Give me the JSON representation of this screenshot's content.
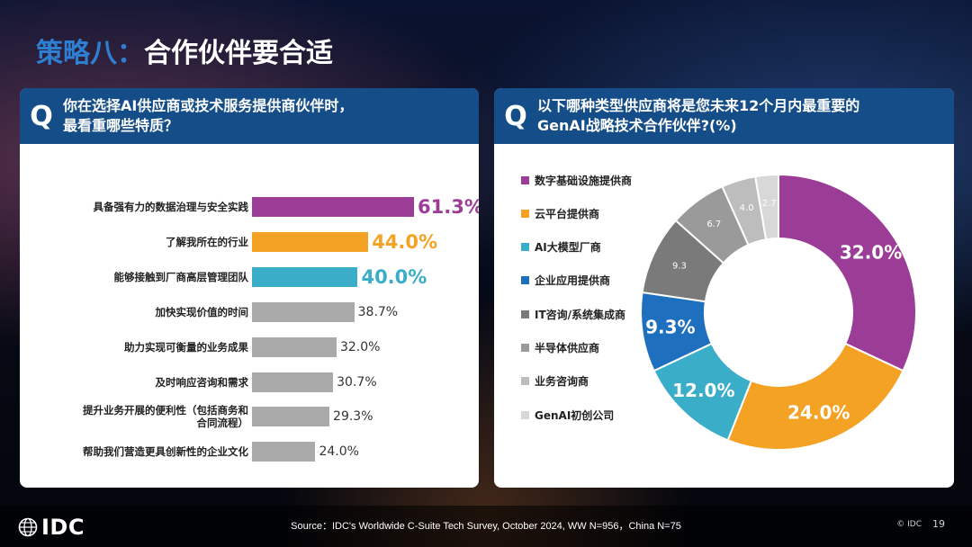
{
  "title": {
    "part1": "策略八：",
    "part2": "合作伙伴要合适"
  },
  "left_panel": {
    "q_mark": "Q",
    "question_line1": "你在选择AI供应商或技术服务提供商伙伴时，",
    "question_line2": "最看重哪些特质？"
  },
  "right_panel": {
    "q_mark": "Q",
    "question_line1": "以下哪种类型供应商将是您未来12个月内最重要的",
    "question_line2": "GenAI战略技术合作伙伴?(%)"
  },
  "chart_data": [
    {
      "type": "bar",
      "orientation": "horizontal",
      "categories": [
        "具备强有力的数据治理与安全实践",
        "了解我所在的行业",
        "能够接触到厂商高层管理团队",
        "加快实现价值的时间",
        "助力实现可衡量的业务成果",
        "及时响应咨询和需求",
        "提升业务开展的便利性（包括商务和合同流程）",
        "帮助我们营造更具创新性的企业文化"
      ],
      "category_lines": [
        [
          "具备强有力的数据治理与安全实践"
        ],
        [
          "了解我所在的行业"
        ],
        [
          "能够接触到厂商高层管理团队"
        ],
        [
          "加快实现价值的时间"
        ],
        [
          "助力实现可衡量的业务成果"
        ],
        [
          "及时响应咨询和需求"
        ],
        [
          "提升业务开展的便利性（包括商务和",
          "合同流程）"
        ],
        [
          "帮助我们营造更具创新性的企业文化"
        ]
      ],
      "values": [
        61.3,
        44.0,
        40.0,
        38.7,
        32.0,
        30.7,
        29.3,
        24.0
      ],
      "labels": [
        "61.3%",
        "44.0%",
        "40.0%",
        "38.7%",
        "32.0%",
        "30.7%",
        "29.3%",
        "24.0%"
      ],
      "colors": [
        "#9b3d97",
        "#f4a223",
        "#3aaec8",
        "#aaaaaa",
        "#aaaaaa",
        "#aaaaaa",
        "#aaaaaa",
        "#aaaaaa"
      ],
      "highlight": [
        true,
        true,
        true,
        false,
        false,
        false,
        false,
        false
      ],
      "xlim": [
        0,
        100
      ]
    },
    {
      "type": "pie",
      "style": "donut",
      "categories": [
        "数字基础设施提供商",
        "云平台提供商",
        "AI大模型厂商",
        "企业应用提供商",
        "IT咨询/系统集成商",
        "半导体供应商",
        "业务咨询商",
        "GenAI初创公司"
      ],
      "values": [
        32.0,
        24.0,
        12.0,
        9.3,
        9.3,
        6.7,
        4.0,
        2.7
      ],
      "labels": [
        "32.0%",
        "24.0%",
        "12.0%",
        "9.3%",
        "9.3",
        "6.7",
        "4.0",
        "2.7"
      ],
      "colors": [
        "#9b3d97",
        "#f4a223",
        "#3aaec8",
        "#1f6fbf",
        "#7a7a7a",
        "#9a9a9a",
        "#bdbdbd",
        "#d8d8d8"
      ],
      "label_colors": [
        "#ffffff",
        "#ffffff",
        "#ffffff",
        "#ffffff",
        "#ffffff",
        "#ffffff",
        "#ffffff",
        "#ffffff"
      ],
      "label_big": [
        true,
        true,
        true,
        true,
        false,
        false,
        false,
        false
      ]
    }
  ],
  "footer": {
    "logo_text": "IDC",
    "source": "Source：IDC's Worldwide C-Suite Tech Survey, October 2024, WW N=956，China N=75",
    "copyright": "© IDC",
    "page": "19"
  }
}
